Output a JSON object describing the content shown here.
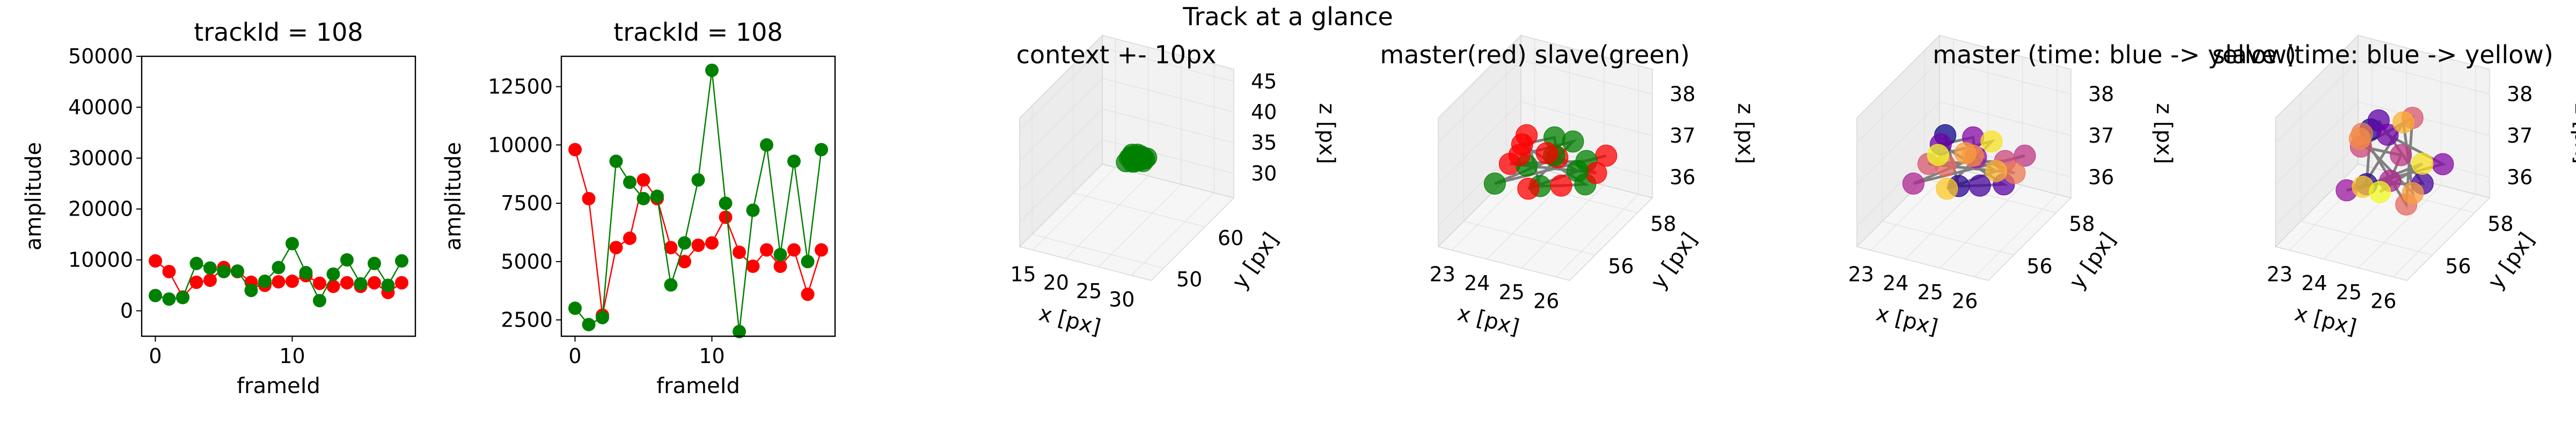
{
  "figure": {
    "suptitle": "Track at a glance"
  },
  "colors": {
    "master": "#ff0000",
    "slave": "#008000",
    "line3d": "#808080"
  },
  "chart_data": [
    {
      "type": "line",
      "title": "trackId = 108",
      "xlabel": "frameId",
      "ylabel": "amplitude",
      "xlim": [
        -1,
        19
      ],
      "ylim": [
        -5000,
        50000
      ],
      "xticks": [
        0,
        10
      ],
      "yticks": [
        0,
        10000,
        20000,
        30000,
        40000,
        50000
      ],
      "x": [
        0,
        1,
        2,
        3,
        4,
        5,
        6,
        7,
        8,
        9,
        10,
        11,
        12,
        13,
        14,
        15,
        16,
        17,
        18
      ],
      "series": [
        {
          "color": "#ff0000",
          "values": [
            9800,
            7700,
            2700,
            5600,
            6000,
            8500,
            7700,
            5600,
            5000,
            5700,
            5800,
            6900,
            5400,
            4800,
            5500,
            4800,
            5500,
            3600,
            5500
          ]
        },
        {
          "color": "#008000",
          "values": [
            3000,
            2300,
            2600,
            9300,
            8400,
            7700,
            7800,
            4000,
            5800,
            8500,
            13200,
            7500,
            2000,
            7200,
            10000,
            5300,
            9300,
            5000,
            9800
          ]
        }
      ]
    },
    {
      "type": "line",
      "title": "trackId = 108",
      "xlabel": "frameId",
      "ylabel": "amplitude",
      "xlim": [
        -1,
        19
      ],
      "ylim": [
        1800,
        13800
      ],
      "xticks": [
        0,
        10
      ],
      "yticks": [
        2500,
        5000,
        7500,
        10000,
        12500
      ],
      "x": [
        0,
        1,
        2,
        3,
        4,
        5,
        6,
        7,
        8,
        9,
        10,
        11,
        12,
        13,
        14,
        15,
        16,
        17,
        18
      ],
      "series": [
        {
          "color": "#ff0000",
          "values": [
            9800,
            7700,
            2700,
            5600,
            6000,
            8500,
            7700,
            5600,
            5000,
            5700,
            5800,
            6900,
            5400,
            4800,
            5500,
            4800,
            5500,
            3600,
            5500
          ]
        },
        {
          "color": "#008000",
          "values": [
            3000,
            2300,
            2600,
            9300,
            8400,
            7700,
            7800,
            4000,
            5800,
            8500,
            13200,
            7500,
            2000,
            7200,
            10000,
            5300,
            9300,
            5000,
            9800
          ]
        }
      ]
    },
    {
      "type": "scatter",
      "title": "context +- 10px",
      "xlabel": "x [px]",
      "ylabel": "y [px]",
      "zlabel": "z [px]",
      "xlim": [
        13,
        33
      ],
      "ylim": [
        47,
        67
      ],
      "zlim": [
        26,
        47
      ],
      "xticks": [
        15,
        20,
        25,
        30
      ],
      "yticks": [
        50,
        60
      ],
      "zticks": [
        30,
        35,
        40,
        45
      ],
      "coloring": "slave-green",
      "points": [
        [
          23.5,
          57.5,
          37.0
        ],
        [
          24.5,
          56.5,
          36.5
        ],
        [
          24.5,
          57.5,
          36.0
        ],
        [
          25.5,
          57.0,
          36.5
        ],
        [
          23.8,
          56.8,
          37.2
        ],
        [
          24.0,
          58.0,
          36.8
        ],
        [
          25.0,
          56.5,
          37.3
        ],
        [
          23.5,
          56.0,
          36.6
        ],
        [
          25.8,
          57.5,
          37.0
        ],
        [
          24.8,
          58.2,
          36.3
        ],
        [
          23.2,
          57.2,
          36.4
        ],
        [
          24.3,
          56.2,
          37.1
        ],
        [
          25.2,
          58.0,
          36.2
        ],
        [
          24.6,
          57.0,
          37.0
        ],
        [
          23.9,
          57.8,
          36.5
        ],
        [
          25.4,
          56.8,
          36.9
        ],
        [
          24.1,
          56.6,
          36.3
        ],
        [
          24.9,
          57.4,
          37.2
        ],
        [
          23.6,
          57.0,
          36.8
        ]
      ]
    },
    {
      "type": "scatter",
      "title": "master(red) slave(green)",
      "xlabel": "x [px]",
      "ylabel": "y [px]",
      "zlabel": "z [px]",
      "xlim": [
        22.6,
        26.4
      ],
      "ylim": [
        54.8,
        58.7
      ],
      "zlim": [
        35.5,
        38.6
      ],
      "xticks": [
        23,
        24,
        25,
        26
      ],
      "yticks": [
        56,
        58
      ],
      "zticks": [
        36,
        37,
        38
      ],
      "coloring": "red-green",
      "points": [
        [
          23.5,
          57.5,
          37.0
        ],
        [
          24.5,
          56.5,
          36.5
        ],
        [
          24.5,
          57.5,
          36.0
        ],
        [
          25.5,
          57.0,
          36.5
        ],
        [
          23.8,
          56.8,
          37.2
        ],
        [
          24.0,
          58.0,
          36.8
        ],
        [
          25.0,
          56.5,
          37.3
        ],
        [
          23.5,
          56.0,
          36.6
        ],
        [
          25.8,
          57.5,
          37.0
        ],
        [
          24.8,
          58.2,
          36.3
        ],
        [
          23.2,
          57.2,
          36.4
        ],
        [
          24.3,
          56.2,
          37.1
        ],
        [
          25.2,
          58.0,
          36.2
        ],
        [
          24.6,
          57.0,
          37.0
        ],
        [
          23.9,
          57.8,
          36.5
        ],
        [
          25.4,
          56.8,
          36.9
        ],
        [
          24.1,
          56.6,
          36.3
        ],
        [
          24.9,
          57.4,
          37.2
        ],
        [
          23.6,
          57.0,
          36.8
        ]
      ]
    },
    {
      "type": "scatter",
      "title": "master (time: blue -> yellow)",
      "xlabel": "x [px]",
      "ylabel": "y [px]",
      "zlabel": "z [px]",
      "xlim": [
        22.6,
        26.4
      ],
      "ylim": [
        54.8,
        58.7
      ],
      "zlim": [
        35.5,
        38.6
      ],
      "xticks": [
        23,
        24,
        25,
        26
      ],
      "yticks": [
        56,
        58
      ],
      "zticks": [
        36,
        37,
        38
      ],
      "coloring": "time-plasma",
      "points": [
        [
          23.5,
          57.5,
          37.0
        ],
        [
          24.5,
          56.5,
          36.5
        ],
        [
          24.5,
          57.5,
          36.0
        ],
        [
          25.5,
          57.0,
          36.5
        ],
        [
          23.8,
          56.8,
          37.2
        ],
        [
          24.0,
          58.0,
          36.8
        ],
        [
          25.0,
          56.5,
          37.3
        ],
        [
          23.5,
          56.0,
          36.6
        ],
        [
          25.8,
          57.5,
          37.0
        ],
        [
          24.8,
          58.2,
          36.3
        ],
        [
          23.2,
          57.2,
          36.4
        ],
        [
          24.3,
          56.2,
          37.1
        ],
        [
          25.2,
          58.0,
          36.2
        ],
        [
          24.6,
          57.0,
          37.0
        ],
        [
          23.9,
          57.8,
          36.5
        ],
        [
          25.4,
          56.8,
          36.9
        ],
        [
          24.1,
          56.6,
          36.3
        ],
        [
          24.9,
          57.4,
          37.2
        ],
        [
          23.6,
          57.0,
          36.8
        ]
      ]
    },
    {
      "type": "scatter",
      "title": "slave (time: blue -> yellow)",
      "xlabel": "x [px]",
      "ylabel": "y [px]",
      "zlabel": "z [px]",
      "xlim": [
        22.6,
        26.4
      ],
      "ylim": [
        54.8,
        58.7
      ],
      "zlim": [
        35.5,
        38.6
      ],
      "xticks": [
        23,
        24,
        25,
        26
      ],
      "yticks": [
        56,
        58
      ],
      "zticks": [
        36,
        37,
        38
      ],
      "coloring": "time-plasma",
      "points": [
        [
          24.0,
          57.0,
          37.5
        ],
        [
          24.5,
          56.0,
          36.8
        ],
        [
          25.2,
          57.5,
          36.2
        ],
        [
          23.5,
          58.2,
          37.0
        ],
        [
          24.8,
          56.5,
          37.8
        ],
        [
          25.6,
          57.8,
          36.6
        ],
        [
          23.8,
          56.2,
          36.4
        ],
        [
          24.2,
          57.6,
          36.0
        ],
        [
          25.0,
          56.8,
          37.2
        ],
        [
          23.6,
          57.2,
          36.9
        ],
        [
          24.6,
          58.0,
          37.4
        ],
        [
          25.4,
          56.4,
          36.3
        ],
        [
          24.0,
          56.6,
          37.6
        ],
        [
          23.2,
          57.8,
          36.7
        ],
        [
          25.1,
          57.2,
          36.1
        ],
        [
          24.4,
          57.9,
          37.3
        ],
        [
          23.9,
          56.8,
          36.2
        ],
        [
          25.5,
          57.0,
          37.0
        ],
        [
          24.7,
          56.3,
          36.5
        ]
      ]
    }
  ]
}
